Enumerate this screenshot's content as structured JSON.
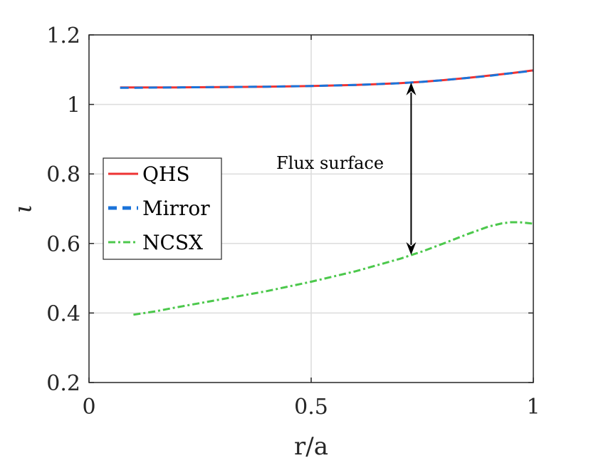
{
  "chart_data": {
    "type": "line",
    "title": "",
    "xlabel": "r/a",
    "ylabel": "ι",
    "xlim": [
      0,
      1
    ],
    "ylim": [
      0.2,
      1.2
    ],
    "xticks": [
      0,
      0.5,
      1
    ],
    "xtick_labels": [
      "0",
      "0.5",
      "1"
    ],
    "yticks": [
      0.2,
      0.4,
      0.6,
      0.8,
      1.0,
      1.2
    ],
    "ytick_labels": [
      "0.2",
      "0.4",
      "0.6",
      "0.8",
      "1",
      "1.2"
    ],
    "grid": true,
    "legend_position": "left",
    "series": [
      {
        "name": "QHS",
        "style": "solid",
        "color": "#ee3333",
        "x": [
          0.07,
          0.1,
          0.2,
          0.3,
          0.4,
          0.5,
          0.6,
          0.7,
          0.75,
          0.8,
          0.85,
          0.9,
          0.95,
          1.0
        ],
        "y": [
          1.049,
          1.049,
          1.049,
          1.05,
          1.051,
          1.053,
          1.056,
          1.061,
          1.065,
          1.07,
          1.076,
          1.083,
          1.09,
          1.098
        ]
      },
      {
        "name": "Mirror",
        "style": "dashed",
        "color": "#1a73d9",
        "x": [
          0.07,
          0.1,
          0.2,
          0.3,
          0.4,
          0.5,
          0.6,
          0.7,
          0.75,
          0.8,
          0.85,
          0.9,
          0.95,
          1.0
        ],
        "y": [
          1.048,
          1.048,
          1.049,
          1.05,
          1.051,
          1.053,
          1.056,
          1.061,
          1.065,
          1.07,
          1.076,
          1.082,
          1.09,
          1.097
        ]
      },
      {
        "name": "NCSX",
        "style": "dashdot",
        "color": "#4cc84c",
        "x": [
          0.1,
          0.15,
          0.2,
          0.3,
          0.4,
          0.5,
          0.6,
          0.7,
          0.75,
          0.8,
          0.85,
          0.9,
          0.93,
          0.95,
          0.97,
          1.0
        ],
        "y": [
          0.395,
          0.405,
          0.417,
          0.44,
          0.463,
          0.49,
          0.52,
          0.556,
          0.577,
          0.601,
          0.626,
          0.649,
          0.658,
          0.661,
          0.661,
          0.657
        ]
      }
    ],
    "annotations": [
      {
        "text": "Flux surface",
        "arrow_x": 0.725,
        "arrow_from_y": 0.567,
        "arrow_to_y": 1.063
      }
    ]
  }
}
